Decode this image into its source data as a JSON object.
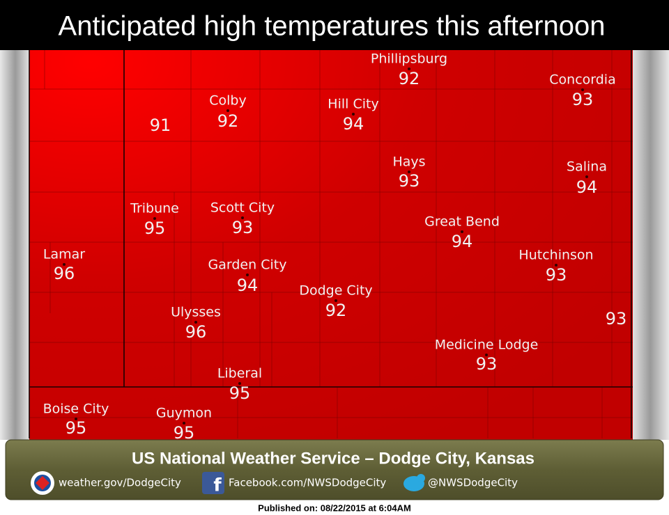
{
  "title": "Anticipated high temperatures this afternoon",
  "cities": [
    {
      "name": "Phillipsburg",
      "temp": 92
    },
    {
      "name": "Concordia",
      "temp": 93
    },
    {
      "name": "Colby",
      "temp": 92
    },
    {
      "name": "Hill City",
      "temp": 94
    },
    {
      "name": "Hays",
      "temp": 93
    },
    {
      "name": "Salina",
      "temp": 94
    },
    {
      "name": "Tribune",
      "temp": 95
    },
    {
      "name": "Scott City",
      "temp": 93
    },
    {
      "name": "Great Bend",
      "temp": 94
    },
    {
      "name": "Lamar",
      "temp": 96
    },
    {
      "name": "Hutchinson",
      "temp": 93
    },
    {
      "name": "Garden City",
      "temp": 94
    },
    {
      "name": "Dodge City",
      "temp": 92
    },
    {
      "name": "Ulysses",
      "temp": 96
    },
    {
      "name": "Medicine Lodge",
      "temp": 93
    },
    {
      "name": "Liberal",
      "temp": 95
    },
    {
      "name": "Boise City",
      "temp": 95
    },
    {
      "name": "Guymon",
      "temp": 95
    }
  ],
  "unlabeled_temps": [
    91,
    93
  ],
  "footer": {
    "agency": "US National Weather Service – Dodge City, Kansas",
    "website": "weather.gov/DodgeCity",
    "facebook": "Facebook.com/NWSDodgeCity",
    "twitter": "@NWSDodgeCity"
  },
  "published": "Published on: 08/22/2015 at 6:04AM"
}
